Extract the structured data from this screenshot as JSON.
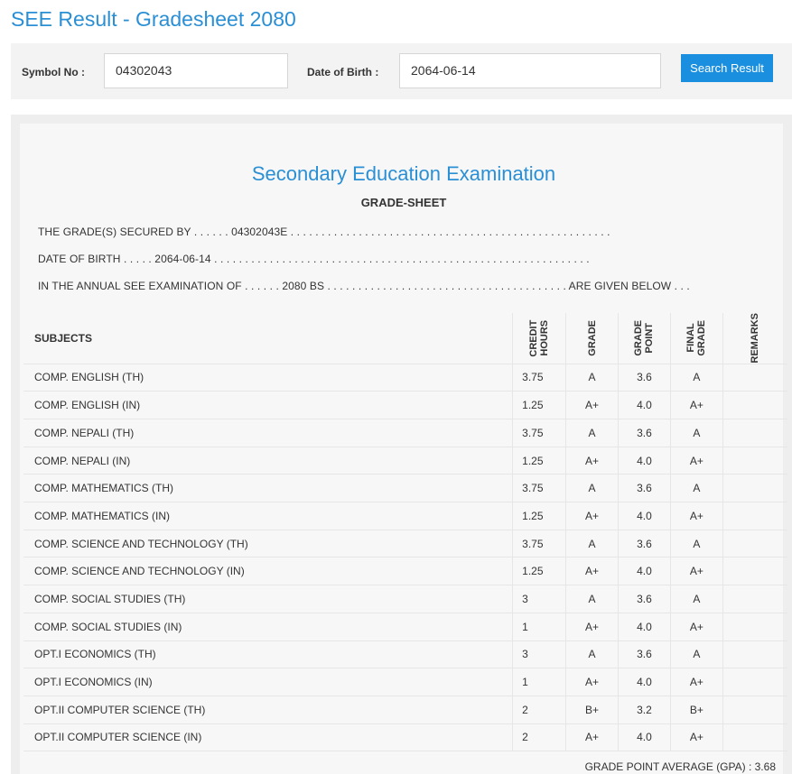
{
  "page": {
    "title": "SEE Result - Gradesheet 2080"
  },
  "search": {
    "symbol_label": "Symbol No :",
    "symbol_value": "04302043",
    "dob_label": "Date of Birth :",
    "dob_value": "2064-06-14",
    "button_label": "Search Result"
  },
  "sheet": {
    "exam_title": "Secondary Education Examination",
    "subtitle": "GRADE-SHEET",
    "line1": "THE GRADE(S) SECURED BY . . . . . . 04302043E . . . . . . . . . . . . . . . . . . . . . . . . . . . . . . . . . . . . . . . . . . . . . . . . . . . .",
    "line2": "DATE OF BIRTH . . . . . 2064-06-14 . . . . . . . . . . . . . . . . . . . . . . . . . . . . . . . . . . . . . . . . . . . . . . . . . . . . . . . . . . . . .",
    "line3": "IN THE ANNUAL SEE EXAMINATION OF . . . . . . 2080 BS . . . . . . . . . . . . . . . . . . . . . . . . . . . . . . . . . . . . . . . ARE GIVEN BELOW . . .",
    "columns": {
      "subjects": "SUBJECTS",
      "credit_hours": "CREDIT HOURS",
      "grade": "GRADE",
      "grade_point": "GRADE POINT",
      "final_grade": "FINAL GRADE",
      "remarks": "REMARKS"
    },
    "rows": [
      {
        "subject": "COMP. ENGLISH (TH)",
        "credit": "3.75",
        "grade": "A",
        "point": "3.6",
        "final": "A",
        "remarks": ""
      },
      {
        "subject": "COMP. ENGLISH (IN)",
        "credit": "1.25",
        "grade": "A+",
        "point": "4.0",
        "final": "A+",
        "remarks": ""
      },
      {
        "subject": "COMP. NEPALI (TH)",
        "credit": "3.75",
        "grade": "A",
        "point": "3.6",
        "final": "A",
        "remarks": ""
      },
      {
        "subject": "COMP. NEPALI (IN)",
        "credit": "1.25",
        "grade": "A+",
        "point": "4.0",
        "final": "A+",
        "remarks": ""
      },
      {
        "subject": "COMP. MATHEMATICS (TH)",
        "credit": "3.75",
        "grade": "A",
        "point": "3.6",
        "final": "A",
        "remarks": ""
      },
      {
        "subject": "COMP. MATHEMATICS (IN)",
        "credit": "1.25",
        "grade": "A+",
        "point": "4.0",
        "final": "A+",
        "remarks": ""
      },
      {
        "subject": "COMP. SCIENCE AND TECHNOLOGY (TH)",
        "credit": "3.75",
        "grade": "A",
        "point": "3.6",
        "final": "A",
        "remarks": ""
      },
      {
        "subject": "COMP. SCIENCE AND TECHNOLOGY (IN)",
        "credit": "1.25",
        "grade": "A+",
        "point": "4.0",
        "final": "A+",
        "remarks": ""
      },
      {
        "subject": "COMP. SOCIAL STUDIES (TH)",
        "credit": "3",
        "grade": "A",
        "point": "3.6",
        "final": "A",
        "remarks": ""
      },
      {
        "subject": "COMP. SOCIAL STUDIES (IN)",
        "credit": "1",
        "grade": "A+",
        "point": "4.0",
        "final": "A+",
        "remarks": ""
      },
      {
        "subject": "OPT.I ECONOMICS (TH)",
        "credit": "3",
        "grade": "A",
        "point": "3.6",
        "final": "A",
        "remarks": ""
      },
      {
        "subject": "OPT.I ECONOMICS (IN)",
        "credit": "1",
        "grade": "A+",
        "point": "4.0",
        "final": "A+",
        "remarks": ""
      },
      {
        "subject": "OPT.II COMPUTER SCIENCE (TH)",
        "credit": "2",
        "grade": "B+",
        "point": "3.2",
        "final": "B+",
        "remarks": ""
      },
      {
        "subject": "OPT.II COMPUTER SCIENCE (IN)",
        "credit": "2",
        "grade": "A+",
        "point": "4.0",
        "final": "A+",
        "remarks": ""
      }
    ],
    "gpa": "GRADE POINT AVERAGE (GPA) : 3.68"
  },
  "colors": {
    "accent": "#2a8fd4",
    "button": "#1a8fe0"
  }
}
